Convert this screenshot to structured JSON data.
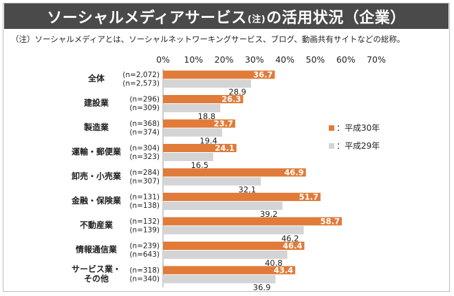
{
  "title": {
    "main_before": "ソーシャルメディアサービス",
    "note": "(注)",
    "main_after": "の活用状況（企業）"
  },
  "subtitle": "（注）ソーシャルメディアとは、ソーシャルネットワーキングサービス、ブログ、動画共有サイトなどの総称。",
  "colors": {
    "h30": "#e07b39",
    "h29": "#d4d4d4",
    "title_bg": "#4a4a4a"
  },
  "chart_data": {
    "type": "bar",
    "orientation": "horizontal",
    "xlim": [
      0,
      70
    ],
    "ticks": [
      "0%",
      "10%",
      "20%",
      "30%",
      "40%",
      "50%",
      "60%",
      "70%"
    ],
    "categories": [
      {
        "name": [
          "全体"
        ],
        "n": [
          "(n=2,072)",
          "(n=2,573)"
        ]
      },
      {
        "name": [
          "建設業"
        ],
        "n": [
          "(n=296)",
          "(n=309)"
        ]
      },
      {
        "name": [
          "製造業"
        ],
        "n": [
          "(n=368)",
          "(n=374)"
        ]
      },
      {
        "name": [
          "運輸・郵便業"
        ],
        "n": [
          "(n=304)",
          "(n=323)"
        ]
      },
      {
        "name": [
          "卸売・小売業"
        ],
        "n": [
          "(n=284)",
          "(n=307)"
        ]
      },
      {
        "name": [
          "金融・保険業"
        ],
        "n": [
          "(n=131)",
          "(n=138)"
        ]
      },
      {
        "name": [
          "不動産業"
        ],
        "n": [
          "(n=132)",
          "(n=139)"
        ]
      },
      {
        "name": [
          "情報通信業"
        ],
        "n": [
          "(n=239)",
          "(n=643)"
        ]
      },
      {
        "name": [
          "サービス業・",
          "その他"
        ],
        "n": [
          "(n=318)",
          "(n=340)"
        ]
      }
    ],
    "series": [
      {
        "name": "平成30年",
        "values": [
          36.7,
          26.3,
          23.7,
          24.1,
          46.9,
          51.7,
          58.7,
          46.4,
          43.4
        ]
      },
      {
        "name": "平成29年",
        "values": [
          28.9,
          18.8,
          19.4,
          16.5,
          32.1,
          39.2,
          46.2,
          40.8,
          36.9
        ]
      }
    ]
  },
  "legend": [
    {
      "label": "：平成30年"
    },
    {
      "label": "：平成29年"
    }
  ]
}
